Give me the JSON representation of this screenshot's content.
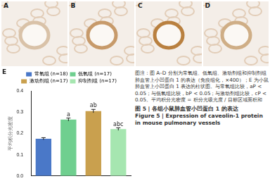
{
  "panels": {
    "labels": [
      "A",
      "B",
      "C",
      "D"
    ]
  },
  "chart_data": {
    "type": "bar",
    "panel_label": "E",
    "y_label": "平均积分光密度",
    "categories": [
      "常氧组 (n=18)",
      "低氧组 (n=17)",
      "激动剂组 (n=17)",
      "抑制剂组 (n=17)"
    ],
    "values": [
      0.175,
      0.265,
      0.305,
      0.22
    ],
    "errors": [
      0.005,
      0.007,
      0.008,
      0.006
    ],
    "colors": [
      "#4a78c8",
      "#6fcf8f",
      "#c9a04e",
      "#a6e6b0"
    ],
    "annotations": [
      {
        "category": "低氧组 (n=17)",
        "text": "a"
      },
      {
        "category": "激动剂组 (n=17)",
        "text": "ab"
      },
      {
        "category": "抑制剂组 (n=17)",
        "text": "abc"
      }
    ],
    "ylim": [
      0,
      0.4
    ],
    "yticks": [
      {
        "value": 0,
        "label": "0.0"
      },
      0.1,
      0.2,
      0.3,
      0.4
    ],
    "grid": false,
    "legend": "top",
    "tick_labels": "y"
  },
  "caption": {
    "text": "图注：图 A–D 分别为常氧组、低氧组、激动剂组和抑制剂组肺血管上小凹蛋白 1 的表达（免疫组化，×400）；E 为小鼠肺血管上小凹蛋白 1 表达的柱状图。与常氧组比较，aP < 0.05；与低氧组比较，bP < 0.05；与激动剂组比较，cP < 0.05。平均积分光密度 = 积分光吸光度 / 目标区域面积和",
    "figure_title": "图 5 | 各组小鼠肺血管小凹蛋白 1 的表达",
    "figure_title_en": "Figure 5 | Expression of caveolin-1 protein in mouse pulmonary vessels"
  }
}
